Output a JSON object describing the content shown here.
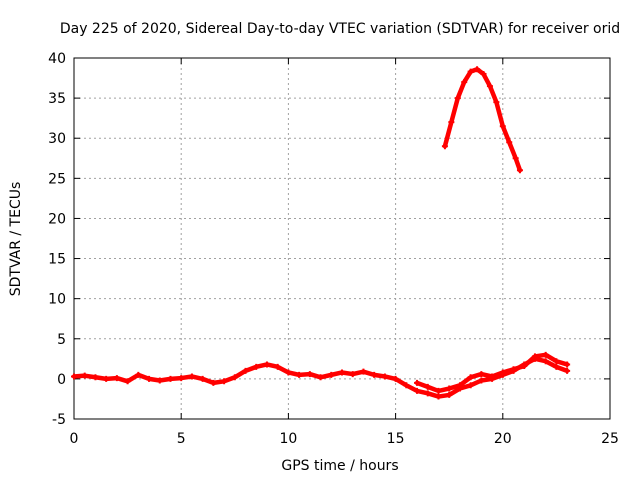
{
  "chart_data": {
    "type": "line",
    "title": "Day 225 of 2020, Sidereal Day-to-day VTEC variation (SDTVAR) for receiver orid",
    "xlabel": "GPS time / hours",
    "ylabel": "SDTVAR / TECUs",
    "xlim": [
      0,
      25
    ],
    "ylim": [
      -5,
      40
    ],
    "xticks": [
      0,
      5,
      10,
      15,
      20,
      25
    ],
    "yticks": [
      -5,
      0,
      5,
      10,
      15,
      20,
      25,
      30,
      35,
      40
    ],
    "grid": true,
    "legend": "none",
    "series": [
      {
        "name": "satellite-arc-low",
        "color": "#ff0000",
        "x": [
          0.0,
          0.5,
          1.0,
          1.5,
          2.0,
          2.5,
          3.0,
          3.5,
          4.0,
          4.5,
          5.0,
          5.5,
          6.0,
          6.5,
          7.0,
          7.5,
          8.0,
          8.5,
          9.0,
          9.5,
          10.0,
          10.5,
          11.0,
          11.5,
          12.0,
          12.5,
          13.0,
          13.5,
          14.0,
          14.5,
          15.0,
          15.5,
          16.0,
          16.5,
          17.0,
          17.5,
          18.0,
          18.5,
          19.0,
          19.5,
          20.0,
          20.5,
          21.0,
          21.5,
          22.0,
          22.5,
          23.0
        ],
        "y": [
          0.3,
          0.4,
          0.2,
          0.0,
          0.1,
          -0.3,
          0.5,
          0.0,
          -0.2,
          0.0,
          0.1,
          0.3,
          0.0,
          -0.5,
          -0.3,
          0.2,
          1.0,
          1.5,
          1.8,
          1.5,
          0.8,
          0.5,
          0.6,
          0.2,
          0.5,
          0.8,
          0.6,
          0.9,
          0.5,
          0.3,
          0.0,
          -0.8,
          -1.5,
          -1.8,
          -2.2,
          -2.0,
          -1.2,
          -0.8,
          -0.2,
          0.0,
          0.5,
          1.0,
          1.8,
          2.5,
          2.2,
          1.5,
          1.0
        ]
      },
      {
        "name": "satellite-arc-low-2",
        "color": "#ff0000",
        "x": [
          16.0,
          16.5,
          17.0,
          17.5,
          18.0,
          18.5,
          19.0,
          19.5,
          20.0,
          20.5,
          21.0,
          21.5,
          22.0,
          22.5,
          23.0
        ],
        "y": [
          -0.5,
          -1.0,
          -1.5,
          -1.2,
          -0.8,
          0.2,
          0.6,
          0.3,
          0.8,
          1.2,
          1.6,
          2.8,
          3.0,
          2.2,
          1.8
        ]
      },
      {
        "name": "satellite-arc-high",
        "color": "#ff0000",
        "x": [
          17.3,
          17.6,
          17.9,
          18.2,
          18.5,
          18.8,
          19.1,
          19.4,
          19.7,
          20.0,
          20.3,
          20.6,
          20.8
        ],
        "y": [
          29.0,
          32.0,
          35.0,
          37.0,
          38.3,
          38.6,
          38.0,
          36.5,
          34.5,
          31.5,
          29.5,
          27.5,
          26.0
        ]
      }
    ]
  }
}
